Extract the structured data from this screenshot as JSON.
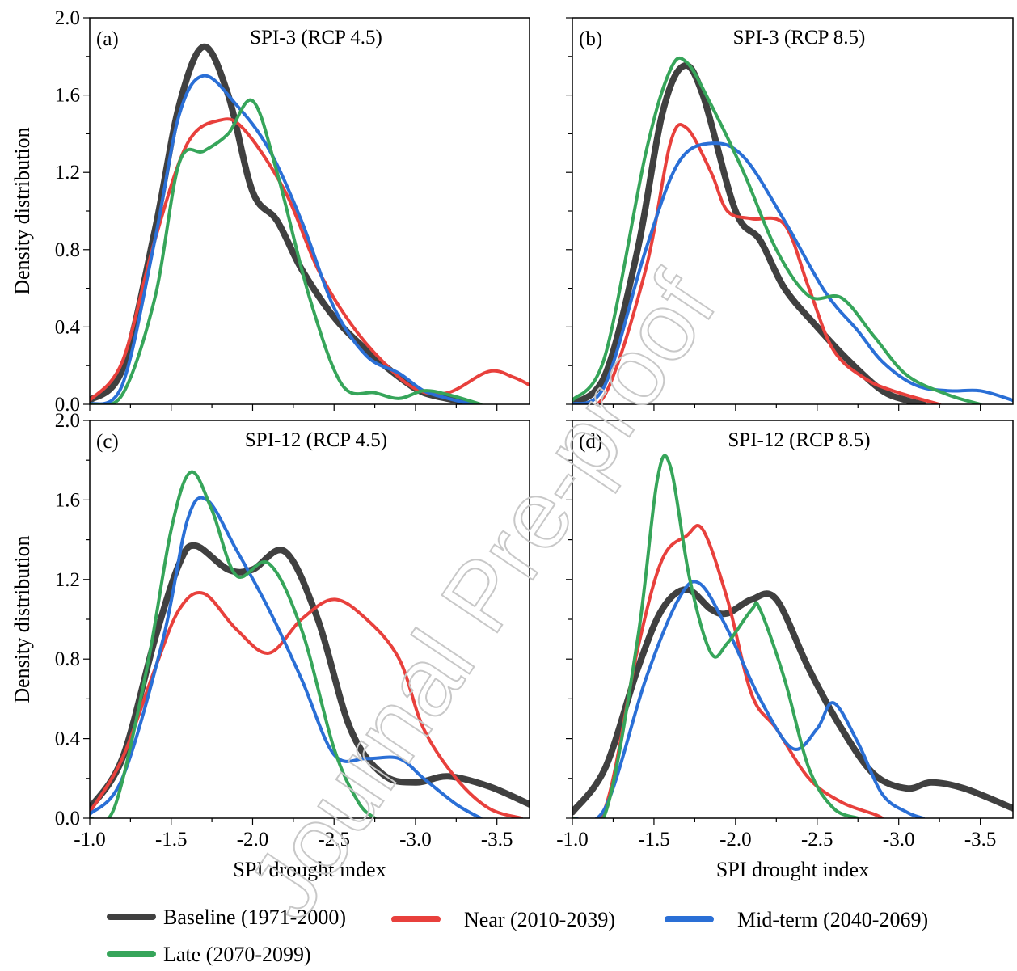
{
  "series_legend": [
    {
      "name": "Baseline (1971-2000)",
      "color": "#404040",
      "width": 8
    },
    {
      "name": "Near (2010-2039)",
      "color": "#e8403c",
      "width": 4
    },
    {
      "name": "Mid-term (2040-2069)",
      "color": "#2a6fd6",
      "width": 4
    },
    {
      "name": "Late (2070-2099)",
      "color": "#36a55a",
      "width": 4
    }
  ],
  "watermark": "Journal Pre-proof",
  "chart_data": [
    {
      "type": "line",
      "tag": "(a)",
      "title": "SPI-3 (RCP 4.5)",
      "xlabel": "",
      "ylabel": "Density distribution",
      "xlim": [
        -1.0,
        -3.7
      ],
      "ylim": [
        0,
        2.0
      ],
      "xticks": [],
      "yticks": [
        "0.0",
        "0.4",
        "0.8",
        "1.2",
        "1.6",
        "2.0"
      ],
      "series": [
        {
          "name": "Baseline (1971-2000)",
          "points": [
            [
              -1.0,
              0.02
            ],
            [
              -1.2,
              0.18
            ],
            [
              -1.4,
              0.9
            ],
            [
              -1.55,
              1.55
            ],
            [
              -1.7,
              1.85
            ],
            [
              -1.85,
              1.6
            ],
            [
              -2.0,
              1.1
            ],
            [
              -2.15,
              0.95
            ],
            [
              -2.3,
              0.7
            ],
            [
              -2.5,
              0.45
            ],
            [
              -2.7,
              0.28
            ],
            [
              -2.9,
              0.14
            ],
            [
              -3.05,
              0.06
            ],
            [
              -3.25,
              0.02
            ],
            [
              -3.35,
              0.0
            ]
          ]
        },
        {
          "name": "Near (2010-2039)",
          "points": [
            [
              -1.0,
              0.02
            ],
            [
              -1.2,
              0.22
            ],
            [
              -1.4,
              0.85
            ],
            [
              -1.6,
              1.35
            ],
            [
              -1.8,
              1.47
            ],
            [
              -1.95,
              1.42
            ],
            [
              -2.2,
              1.1
            ],
            [
              -2.4,
              0.7
            ],
            [
              -2.6,
              0.42
            ],
            [
              -2.8,
              0.22
            ],
            [
              -3.0,
              0.08
            ],
            [
              -3.2,
              0.06
            ],
            [
              -3.45,
              0.17
            ],
            [
              -3.6,
              0.14
            ],
            [
              -3.7,
              0.1
            ]
          ]
        },
        {
          "name": "Mid-term (2040-2069)",
          "points": [
            [
              -1.0,
              0.0
            ],
            [
              -1.2,
              0.1
            ],
            [
              -1.4,
              0.85
            ],
            [
              -1.55,
              1.5
            ],
            [
              -1.7,
              1.7
            ],
            [
              -1.9,
              1.55
            ],
            [
              -2.1,
              1.32
            ],
            [
              -2.3,
              0.95
            ],
            [
              -2.5,
              0.5
            ],
            [
              -2.7,
              0.25
            ],
            [
              -2.9,
              0.16
            ],
            [
              -3.05,
              0.07
            ],
            [
              -3.2,
              0.03
            ],
            [
              -3.35,
              0.0
            ]
          ]
        },
        {
          "name": "Late (2070-2099)",
          "points": [
            [
              -1.0,
              0.0
            ],
            [
              -1.2,
              0.05
            ],
            [
              -1.4,
              0.55
            ],
            [
              -1.55,
              1.25
            ],
            [
              -1.7,
              1.31
            ],
            [
              -1.85,
              1.4
            ],
            [
              -2.0,
              1.57
            ],
            [
              -2.15,
              1.2
            ],
            [
              -2.35,
              0.55
            ],
            [
              -2.55,
              0.1
            ],
            [
              -2.75,
              0.06
            ],
            [
              -2.9,
              0.03
            ],
            [
              -3.05,
              0.07
            ],
            [
              -3.2,
              0.05
            ],
            [
              -3.4,
              0.0
            ]
          ]
        }
      ]
    },
    {
      "type": "line",
      "tag": "(b)",
      "title": "SPI-3 (RCP 8.5)",
      "xlabel": "",
      "ylabel": "",
      "xlim": [
        -1.0,
        -3.7
      ],
      "ylim": [
        0,
        2.0
      ],
      "xticks": [],
      "yticks": [],
      "series": [
        {
          "name": "Baseline (1971-2000)",
          "points": [
            [
              -1.0,
              0.0
            ],
            [
              -1.2,
              0.15
            ],
            [
              -1.4,
              0.8
            ],
            [
              -1.55,
              1.5
            ],
            [
              -1.68,
              1.75
            ],
            [
              -1.8,
              1.6
            ],
            [
              -2.0,
              1.0
            ],
            [
              -2.15,
              0.85
            ],
            [
              -2.3,
              0.6
            ],
            [
              -2.5,
              0.4
            ],
            [
              -2.7,
              0.22
            ],
            [
              -2.9,
              0.07
            ],
            [
              -3.05,
              0.02
            ],
            [
              -3.15,
              0.0
            ]
          ]
        },
        {
          "name": "Near (2010-2039)",
          "points": [
            [
              -1.0,
              0.0
            ],
            [
              -1.2,
              0.05
            ],
            [
              -1.45,
              0.7
            ],
            [
              -1.6,
              1.35
            ],
            [
              -1.7,
              1.43
            ],
            [
              -1.85,
              1.2
            ],
            [
              -1.95,
              1.0
            ],
            [
              -2.1,
              0.96
            ],
            [
              -2.3,
              0.93
            ],
            [
              -2.45,
              0.6
            ],
            [
              -2.6,
              0.28
            ],
            [
              -2.8,
              0.13
            ],
            [
              -3.0,
              0.06
            ],
            [
              -3.25,
              0.0
            ]
          ]
        },
        {
          "name": "Mid-term (2040-2069)",
          "points": [
            [
              -1.0,
              0.0
            ],
            [
              -1.2,
              0.1
            ],
            [
              -1.45,
              0.8
            ],
            [
              -1.65,
              1.25
            ],
            [
              -1.85,
              1.35
            ],
            [
              -2.05,
              1.28
            ],
            [
              -2.3,
              0.95
            ],
            [
              -2.55,
              0.58
            ],
            [
              -2.75,
              0.38
            ],
            [
              -2.9,
              0.22
            ],
            [
              -3.1,
              0.1
            ],
            [
              -3.3,
              0.07
            ],
            [
              -3.5,
              0.07
            ],
            [
              -3.7,
              0.02
            ]
          ]
        },
        {
          "name": "Late (2070-2099)",
          "points": [
            [
              -1.0,
              0.02
            ],
            [
              -1.2,
              0.25
            ],
            [
              -1.45,
              1.3
            ],
            [
              -1.6,
              1.73
            ],
            [
              -1.7,
              1.77
            ],
            [
              -1.85,
              1.55
            ],
            [
              -2.05,
              1.2
            ],
            [
              -2.25,
              0.8
            ],
            [
              -2.45,
              0.56
            ],
            [
              -2.65,
              0.55
            ],
            [
              -2.85,
              0.35
            ],
            [
              -3.05,
              0.15
            ],
            [
              -3.3,
              0.05
            ],
            [
              -3.5,
              0.0
            ]
          ]
        }
      ]
    },
    {
      "type": "line",
      "tag": "(c)",
      "title": "SPI-12 (RCP 4.5)",
      "xlabel": "SPI drought index",
      "ylabel": "Density distribution",
      "xlim": [
        -1.0,
        -3.7
      ],
      "ylim": [
        0,
        2.0
      ],
      "xticks": [
        "-1.0",
        "-1.5",
        "-2.0",
        "-2.5",
        "-3.0",
        "-3.5"
      ],
      "yticks": [
        "0.0",
        "0.4",
        "0.8",
        "1.2",
        "1.6",
        "2.0"
      ],
      "series": [
        {
          "name": "Baseline (1971-2000)",
          "points": [
            [
              -1.0,
              0.05
            ],
            [
              -1.2,
              0.3
            ],
            [
              -1.4,
              0.9
            ],
            [
              -1.55,
              1.28
            ],
            [
              -1.65,
              1.37
            ],
            [
              -1.85,
              1.25
            ],
            [
              -2.0,
              1.25
            ],
            [
              -2.2,
              1.34
            ],
            [
              -2.4,
              1.0
            ],
            [
              -2.6,
              0.45
            ],
            [
              -2.8,
              0.22
            ],
            [
              -3.0,
              0.18
            ],
            [
              -3.2,
              0.21
            ],
            [
              -3.45,
              0.16
            ],
            [
              -3.7,
              0.07
            ]
          ]
        },
        {
          "name": "Near (2010-2039)",
          "points": [
            [
              -1.0,
              0.03
            ],
            [
              -1.2,
              0.3
            ],
            [
              -1.4,
              0.75
            ],
            [
              -1.55,
              1.05
            ],
            [
              -1.7,
              1.13
            ],
            [
              -1.9,
              0.95
            ],
            [
              -2.1,
              0.83
            ],
            [
              -2.3,
              1.0
            ],
            [
              -2.5,
              1.1
            ],
            [
              -2.7,
              1.0
            ],
            [
              -2.9,
              0.8
            ],
            [
              -3.05,
              0.45
            ],
            [
              -3.25,
              0.2
            ],
            [
              -3.45,
              0.05
            ],
            [
              -3.65,
              0.0
            ]
          ]
        },
        {
          "name": "Mid-term (2040-2069)",
          "points": [
            [
              -1.0,
              0.02
            ],
            [
              -1.2,
              0.2
            ],
            [
              -1.45,
              0.9
            ],
            [
              -1.6,
              1.5
            ],
            [
              -1.72,
              1.6
            ],
            [
              -1.9,
              1.35
            ],
            [
              -2.1,
              1.05
            ],
            [
              -2.3,
              0.7
            ],
            [
              -2.5,
              0.32
            ],
            [
              -2.7,
              0.3
            ],
            [
              -2.9,
              0.3
            ],
            [
              -3.05,
              0.2
            ],
            [
              -3.25,
              0.07
            ],
            [
              -3.4,
              0.0
            ]
          ]
        },
        {
          "name": "Late (2070-2099)",
          "points": [
            [
              -1.0,
              0.0
            ],
            [
              -1.15,
              0.05
            ],
            [
              -1.35,
              0.75
            ],
            [
              -1.5,
              1.45
            ],
            [
              -1.62,
              1.74
            ],
            [
              -1.75,
              1.55
            ],
            [
              -1.9,
              1.22
            ],
            [
              -2.1,
              1.28
            ],
            [
              -2.3,
              0.95
            ],
            [
              -2.5,
              0.35
            ],
            [
              -2.65,
              0.08
            ],
            [
              -2.75,
              0.0
            ]
          ]
        }
      ]
    },
    {
      "type": "line",
      "tag": "(d)",
      "title": "SPI-12 (RCP 8.5)",
      "xlabel": "SPI drought index",
      "ylabel": "",
      "xlim": [
        -1.0,
        -3.7
      ],
      "ylim": [
        0,
        2.0
      ],
      "xticks": [
        "-1.0",
        "-1.5",
        "-2.0",
        "-2.5",
        "-3.0",
        "-3.5"
      ],
      "yticks": [],
      "series": [
        {
          "name": "Baseline (1971-2000)",
          "points": [
            [
              -1.0,
              0.03
            ],
            [
              -1.2,
              0.25
            ],
            [
              -1.4,
              0.75
            ],
            [
              -1.55,
              1.05
            ],
            [
              -1.7,
              1.15
            ],
            [
              -1.85,
              1.05
            ],
            [
              -1.95,
              1.03
            ],
            [
              -2.1,
              1.1
            ],
            [
              -2.25,
              1.1
            ],
            [
              -2.45,
              0.75
            ],
            [
              -2.65,
              0.45
            ],
            [
              -2.85,
              0.22
            ],
            [
              -3.05,
              0.15
            ],
            [
              -3.2,
              0.18
            ],
            [
              -3.4,
              0.15
            ],
            [
              -3.7,
              0.05
            ]
          ]
        },
        {
          "name": "Near (2010-2039)",
          "points": [
            [
              -1.0,
              0.0
            ],
            [
              -1.2,
              0.05
            ],
            [
              -1.4,
              0.85
            ],
            [
              -1.55,
              1.3
            ],
            [
              -1.7,
              1.42
            ],
            [
              -1.8,
              1.45
            ],
            [
              -1.95,
              1.1
            ],
            [
              -2.1,
              0.62
            ],
            [
              -2.25,
              0.45
            ],
            [
              -2.45,
              0.2
            ],
            [
              -2.65,
              0.08
            ],
            [
              -2.85,
              0.02
            ],
            [
              -2.9,
              0.0
            ]
          ]
        },
        {
          "name": "Mid-term (2040-2069)",
          "points": [
            [
              -1.0,
              0.0
            ],
            [
              -1.2,
              0.05
            ],
            [
              -1.45,
              0.7
            ],
            [
              -1.65,
              1.1
            ],
            [
              -1.78,
              1.18
            ],
            [
              -1.95,
              0.95
            ],
            [
              -2.15,
              0.6
            ],
            [
              -2.35,
              0.35
            ],
            [
              -2.5,
              0.45
            ],
            [
              -2.6,
              0.58
            ],
            [
              -2.75,
              0.38
            ],
            [
              -2.9,
              0.12
            ],
            [
              -3.05,
              0.03
            ],
            [
              -3.15,
              0.0
            ]
          ]
        },
        {
          "name": "Late (2070-2099)",
          "points": [
            [
              -1.0,
              0.0
            ],
            [
              -1.2,
              0.02
            ],
            [
              -1.4,
              0.9
            ],
            [
              -1.52,
              1.7
            ],
            [
              -1.6,
              1.77
            ],
            [
              -1.72,
              1.2
            ],
            [
              -1.85,
              0.83
            ],
            [
              -1.95,
              0.88
            ],
            [
              -2.1,
              1.05
            ],
            [
              -2.15,
              1.05
            ],
            [
              -2.3,
              0.7
            ],
            [
              -2.45,
              0.25
            ],
            [
              -2.6,
              0.05
            ],
            [
              -2.75,
              0.0
            ]
          ]
        }
      ]
    }
  ]
}
